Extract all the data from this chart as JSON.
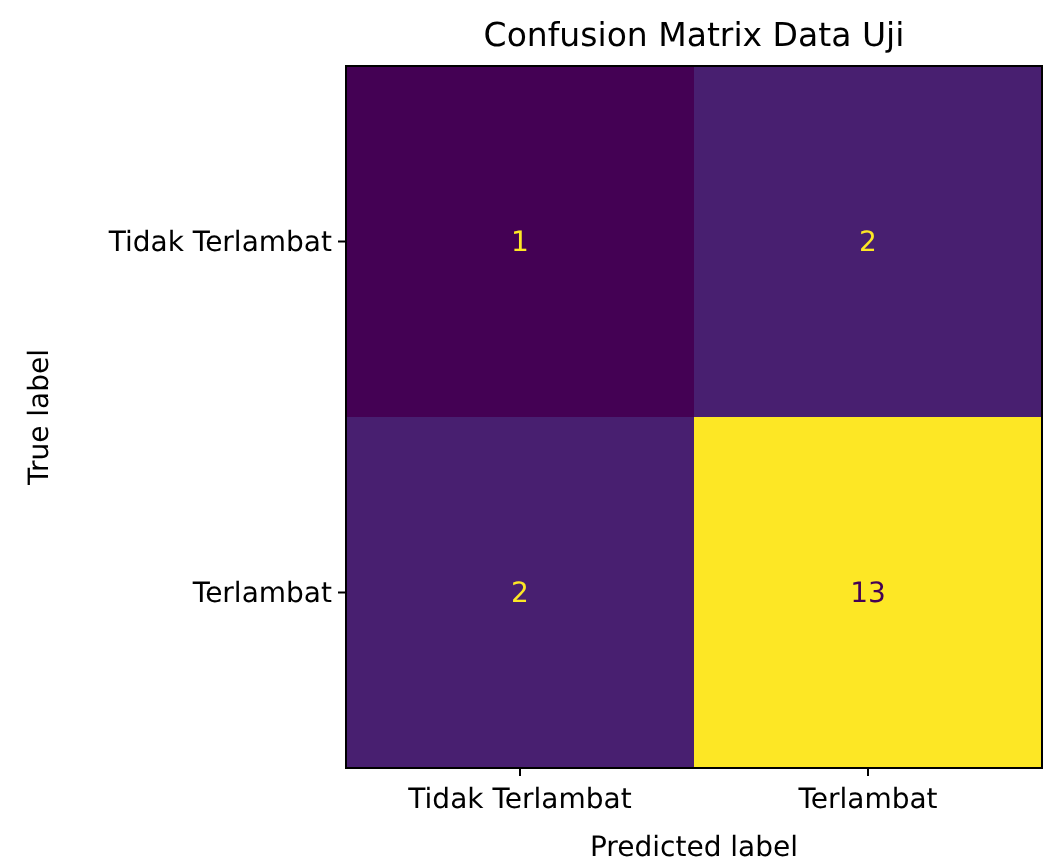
{
  "chart_data": {
    "type": "heatmap",
    "title": "Confusion Matrix Data Uji",
    "xlabel": "Predicted label",
    "ylabel": "True label",
    "categories": [
      "Tidak Terlambat",
      "Terlambat"
    ],
    "y_categories": [
      "Tidak Terlambat",
      "Terlambat"
    ],
    "cells": [
      [
        1,
        2
      ],
      [
        2,
        13
      ]
    ],
    "data_labels": true
  }
}
